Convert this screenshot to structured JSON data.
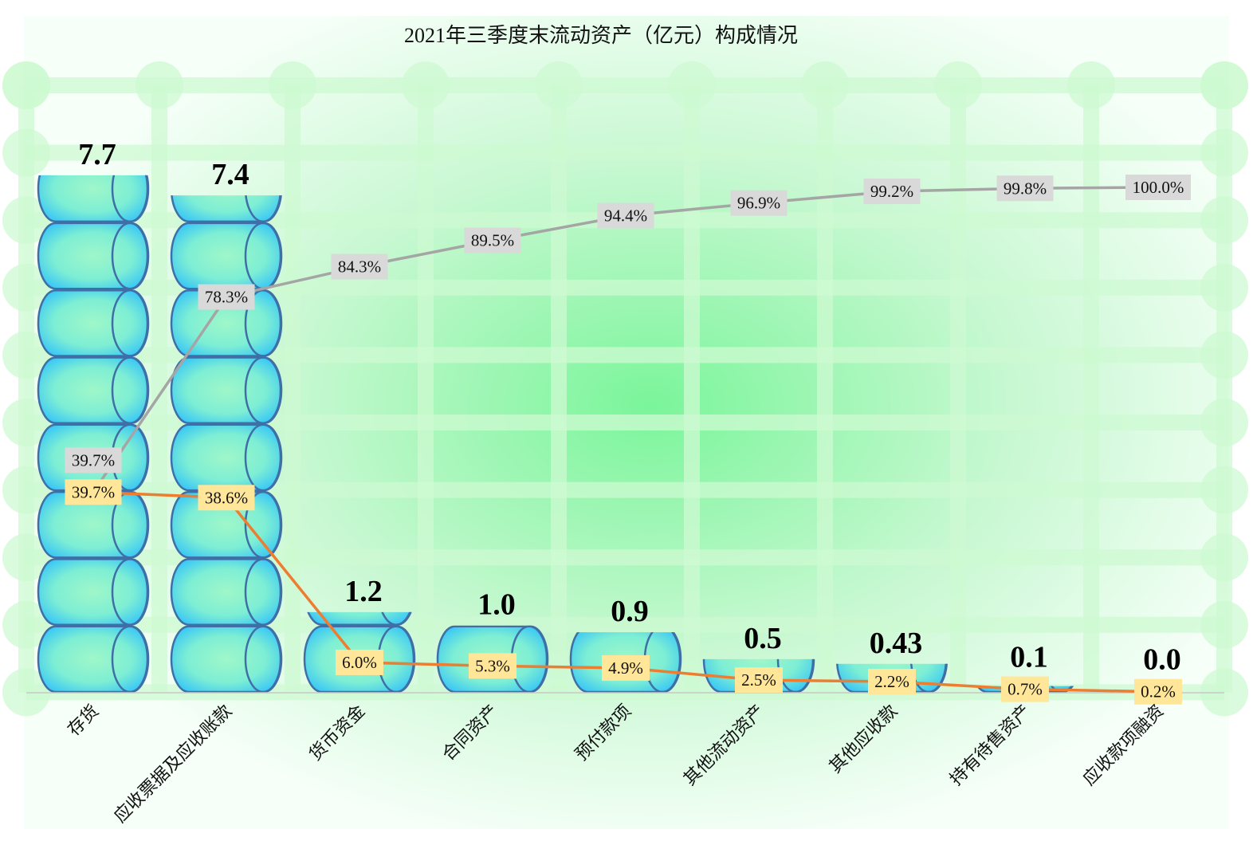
{
  "chart_data": {
    "type": "bar",
    "title": "2021年三季度末流动资产（亿元）构成情况",
    "categories": [
      "存货",
      "应收票据及应收账款",
      "货币资金",
      "合同资产",
      "预付款项",
      "其他流动资产",
      "其他应收款",
      "持有待售资产",
      "应收款项融资"
    ],
    "series": [
      {
        "type": "bar",
        "values": [
          7.7,
          7.4,
          1.2,
          1.0,
          0.9,
          0.5,
          0.43,
          0.1,
          0.0
        ],
        "labels": [
          "7.7",
          "7.4",
          "1.2",
          "1.0",
          "0.9",
          "0.5",
          "0.43",
          "0.1",
          "0.0"
        ],
        "color": "#3ecbf2"
      },
      {
        "type": "line",
        "values": [
          39.7,
          38.6,
          6.0,
          5.3,
          4.9,
          2.5,
          2.2,
          0.7,
          0.2
        ],
        "labels": [
          "39.7%",
          "38.6%",
          "6.0%",
          "5.3%",
          "4.9%",
          "2.5%",
          "2.2%",
          "0.7%",
          "0.2%"
        ],
        "color": "#ed7d31",
        "label_bg": "#ffe699"
      },
      {
        "type": "line",
        "values": [
          39.7,
          78.3,
          84.3,
          89.5,
          94.4,
          96.9,
          99.2,
          99.8,
          100.0
        ],
        "labels": [
          "39.7%",
          "78.3%",
          "84.3%",
          "89.5%",
          "94.4%",
          "96.9%",
          "99.2%",
          "99.8%",
          "100.0%"
        ],
        "color": "#a5a5a5",
        "label_bg": "#d9d9d9"
      }
    ],
    "ylim": [
      0,
      9
    ],
    "y2lim": [
      0,
      100
    ],
    "grid": true,
    "background": "#8ff5a8"
  }
}
